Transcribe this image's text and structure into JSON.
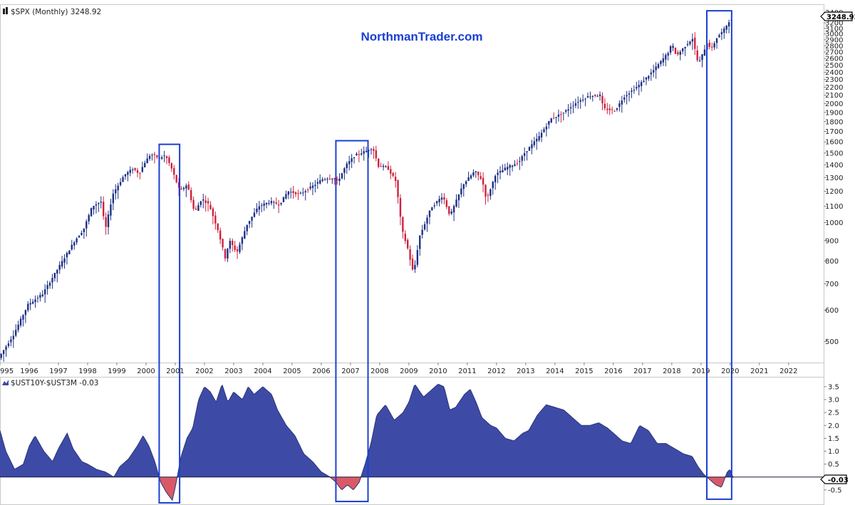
{
  "watermark": "NorthmanTrader.com",
  "chart_data": [
    {
      "type": "candlestick",
      "title": "$SPX (Monthly) 3248.92",
      "icon": "candle-chart-icon",
      "scale": "log",
      "last_value": "3248.92",
      "up_color": "#1c2f86",
      "down_color": "#d0203c",
      "ylim": [
        450,
        3450
      ],
      "y_ticks": [
        "3400",
        "3300",
        "3200",
        "3100",
        "3000",
        "2900",
        "2800",
        "2700",
        "2600",
        "2500",
        "2400",
        "2300",
        "2200",
        "2100",
        "2000",
        "1900",
        "1800",
        "1700",
        "1600",
        "1500",
        "1400",
        "1300",
        "1200",
        "1100",
        "1000",
        "900",
        "800",
        "700",
        "600",
        "500"
      ],
      "x_ticks": [
        "995",
        "1996",
        "1997",
        "1998",
        "1999",
        "2000",
        "2001",
        "2002",
        "2003",
        "2004",
        "2005",
        "2006",
        "2007",
        "2008",
        "2009",
        "2010",
        "2011",
        "2012",
        "2013",
        "2014",
        "2015",
        "2016",
        "2017",
        "2018",
        "2019",
        "2020",
        "2021",
        "2022"
      ],
      "xlim": [
        1995.0,
        2023.2
      ],
      "series_points": [
        [
          1995.0,
          455
        ],
        [
          1995.5,
          520
        ],
        [
          1996.0,
          620
        ],
        [
          1996.5,
          660
        ],
        [
          1997.0,
          760
        ],
        [
          1997.6,
          900
        ],
        [
          1997.9,
          960
        ],
        [
          1998.2,
          1100
        ],
        [
          1998.5,
          1130
        ],
        [
          1998.65,
          960
        ],
        [
          1998.9,
          1180
        ],
        [
          1999.3,
          1320
        ],
        [
          1999.6,
          1370
        ],
        [
          1999.8,
          1330
        ],
        [
          2000.0,
          1420
        ],
        [
          2000.2,
          1490
        ],
        [
          2000.5,
          1455
        ],
        [
          2000.7,
          1480
        ],
        [
          2000.9,
          1380
        ],
        [
          2001.2,
          1200
        ],
        [
          2001.45,
          1250
        ],
        [
          2001.7,
          1060
        ],
        [
          2001.95,
          1150
        ],
        [
          2002.2,
          1110
        ],
        [
          2002.5,
          960
        ],
        [
          2002.75,
          815
        ],
        [
          2002.9,
          900
        ],
        [
          2003.15,
          840
        ],
        [
          2003.5,
          990
        ],
        [
          2003.9,
          1100
        ],
        [
          2004.3,
          1130
        ],
        [
          2004.6,
          1110
        ],
        [
          2004.9,
          1200
        ],
        [
          2005.3,
          1180
        ],
        [
          2005.7,
          1230
        ],
        [
          2006.1,
          1290
        ],
        [
          2006.4,
          1300
        ],
        [
          2006.6,
          1270
        ],
        [
          2006.9,
          1400
        ],
        [
          2007.2,
          1480
        ],
        [
          2007.6,
          1520
        ],
        [
          2007.8,
          1550
        ],
        [
          2008.0,
          1390
        ],
        [
          2008.3,
          1380
        ],
        [
          2008.6,
          1270
        ],
        [
          2008.8,
          960
        ],
        [
          2009.0,
          860
        ],
        [
          2009.2,
          740
        ],
        [
          2009.4,
          920
        ],
        [
          2009.8,
          1090
        ],
        [
          2010.2,
          1170
        ],
        [
          2010.45,
          1040
        ],
        [
          2010.9,
          1250
        ],
        [
          2011.3,
          1350
        ],
        [
          2011.55,
          1280
        ],
        [
          2011.7,
          1140
        ],
        [
          2012.0,
          1320
        ],
        [
          2012.4,
          1380
        ],
        [
          2012.8,
          1420
        ],
        [
          2013.0,
          1500
        ],
        [
          2013.5,
          1650
        ],
        [
          2013.9,
          1830
        ],
        [
          2014.3,
          1890
        ],
        [
          2014.8,
          2020
        ],
        [
          2015.2,
          2090
        ],
        [
          2015.6,
          2100
        ],
        [
          2015.7,
          1940
        ],
        [
          2016.1,
          1920
        ],
        [
          2016.4,
          2080
        ],
        [
          2016.9,
          2220
        ],
        [
          2017.4,
          2420
        ],
        [
          2017.9,
          2680
        ],
        [
          2018.05,
          2830
        ],
        [
          2018.2,
          2640
        ],
        [
          2018.6,
          2850
        ],
        [
          2018.75,
          2920
        ],
        [
          2018.95,
          2510
        ],
        [
          2019.25,
          2850
        ],
        [
          2019.4,
          2750
        ],
        [
          2019.6,
          2950
        ],
        [
          2019.8,
          3050
        ],
        [
          2020.0,
          3230
        ],
        [
          2020.1,
          3249
        ]
      ],
      "highlight_periods": [
        [
          2000.45,
          2001.15
        ],
        [
          2006.5,
          2007.6
        ],
        [
          2019.2,
          2020.05
        ]
      ]
    },
    {
      "type": "area",
      "title": "$UST10Y-$UST3M -0.03",
      "icon": "mountain-chart-icon",
      "last_value": "-0.03",
      "positive_color": "#3d4ba6",
      "negative_color": "#d95a66",
      "ylim": [
        -1.0,
        3.8
      ],
      "y_ticks": [
        "3.5",
        "3.0",
        "2.5",
        "2.0",
        "1.5",
        "1.0",
        "0.5",
        "-0.5"
      ],
      "series_points": [
        [
          1995.0,
          1.8
        ],
        [
          1995.2,
          1.0
        ],
        [
          1995.5,
          0.3
        ],
        [
          1995.8,
          0.5
        ],
        [
          1996.0,
          1.2
        ],
        [
          1996.2,
          1.6
        ],
        [
          1996.5,
          1.0
        ],
        [
          1996.8,
          0.6
        ],
        [
          1997.0,
          1.1
        ],
        [
          1997.3,
          1.7
        ],
        [
          1997.5,
          1.1
        ],
        [
          1997.8,
          0.6
        ],
        [
          1998.0,
          0.5
        ],
        [
          1998.3,
          0.3
        ],
        [
          1998.6,
          0.2
        ],
        [
          1998.9,
          0.0
        ],
        [
          1999.1,
          0.4
        ],
        [
          1999.4,
          0.7
        ],
        [
          1999.7,
          1.2
        ],
        [
          1999.9,
          1.6
        ],
        [
          2000.1,
          1.2
        ],
        [
          2000.3,
          0.6
        ],
        [
          2000.5,
          -0.2
        ],
        [
          2000.7,
          -0.6
        ],
        [
          2000.9,
          -0.9
        ],
        [
          2001.0,
          -0.4
        ],
        [
          2001.2,
          0.8
        ],
        [
          2001.4,
          1.5
        ],
        [
          2001.6,
          1.9
        ],
        [
          2001.8,
          3.0
        ],
        [
          2002.0,
          3.5
        ],
        [
          2002.2,
          3.3
        ],
        [
          2002.4,
          2.9
        ],
        [
          2002.6,
          3.6
        ],
        [
          2002.8,
          2.9
        ],
        [
          2003.0,
          3.3
        ],
        [
          2003.3,
          3.0
        ],
        [
          2003.5,
          3.5
        ],
        [
          2003.7,
          3.2
        ],
        [
          2004.0,
          3.5
        ],
        [
          2004.3,
          3.2
        ],
        [
          2004.5,
          2.6
        ],
        [
          2004.8,
          2.0
        ],
        [
          2005.1,
          1.6
        ],
        [
          2005.4,
          0.9
        ],
        [
          2005.7,
          0.6
        ],
        [
          2006.0,
          0.2
        ],
        [
          2006.3,
          0.0
        ],
        [
          2006.5,
          -0.2
        ],
        [
          2006.7,
          -0.5
        ],
        [
          2006.9,
          -0.3
        ],
        [
          2007.1,
          -0.5
        ],
        [
          2007.3,
          -0.2
        ],
        [
          2007.5,
          0.5
        ],
        [
          2007.7,
          1.3
        ],
        [
          2007.9,
          2.4
        ],
        [
          2008.2,
          2.8
        ],
        [
          2008.5,
          2.2
        ],
        [
          2008.8,
          2.5
        ],
        [
          2009.0,
          2.9
        ],
        [
          2009.2,
          3.6
        ],
        [
          2009.5,
          3.1
        ],
        [
          2009.8,
          3.4
        ],
        [
          2010.0,
          3.6
        ],
        [
          2010.2,
          3.5
        ],
        [
          2010.4,
          2.6
        ],
        [
          2010.6,
          2.7
        ],
        [
          2010.9,
          3.2
        ],
        [
          2011.1,
          3.4
        ],
        [
          2011.3,
          2.9
        ],
        [
          2011.5,
          2.3
        ],
        [
          2011.8,
          2.0
        ],
        [
          2012.0,
          1.9
        ],
        [
          2012.3,
          1.5
        ],
        [
          2012.6,
          1.4
        ],
        [
          2012.9,
          1.7
        ],
        [
          2013.1,
          1.8
        ],
        [
          2013.4,
          2.4
        ],
        [
          2013.7,
          2.8
        ],
        [
          2014.0,
          2.7
        ],
        [
          2014.3,
          2.6
        ],
        [
          2014.6,
          2.3
        ],
        [
          2014.9,
          2.0
        ],
        [
          2015.2,
          2.0
        ],
        [
          2015.5,
          2.1
        ],
        [
          2015.8,
          1.9
        ],
        [
          2016.0,
          1.7
        ],
        [
          2016.3,
          1.4
        ],
        [
          2016.6,
          1.3
        ],
        [
          2016.9,
          2.0
        ],
        [
          2017.2,
          1.8
        ],
        [
          2017.5,
          1.3
        ],
        [
          2017.8,
          1.3
        ],
        [
          2018.1,
          1.1
        ],
        [
          2018.4,
          0.9
        ],
        [
          2018.7,
          0.8
        ],
        [
          2018.9,
          0.4
        ],
        [
          2019.1,
          0.1
        ],
        [
          2019.3,
          -0.1
        ],
        [
          2019.5,
          -0.3
        ],
        [
          2019.7,
          -0.4
        ],
        [
          2019.8,
          -0.1
        ],
        [
          2019.9,
          0.2
        ],
        [
          2020.0,
          0.3
        ],
        [
          2020.1,
          -0.03
        ]
      ]
    }
  ]
}
